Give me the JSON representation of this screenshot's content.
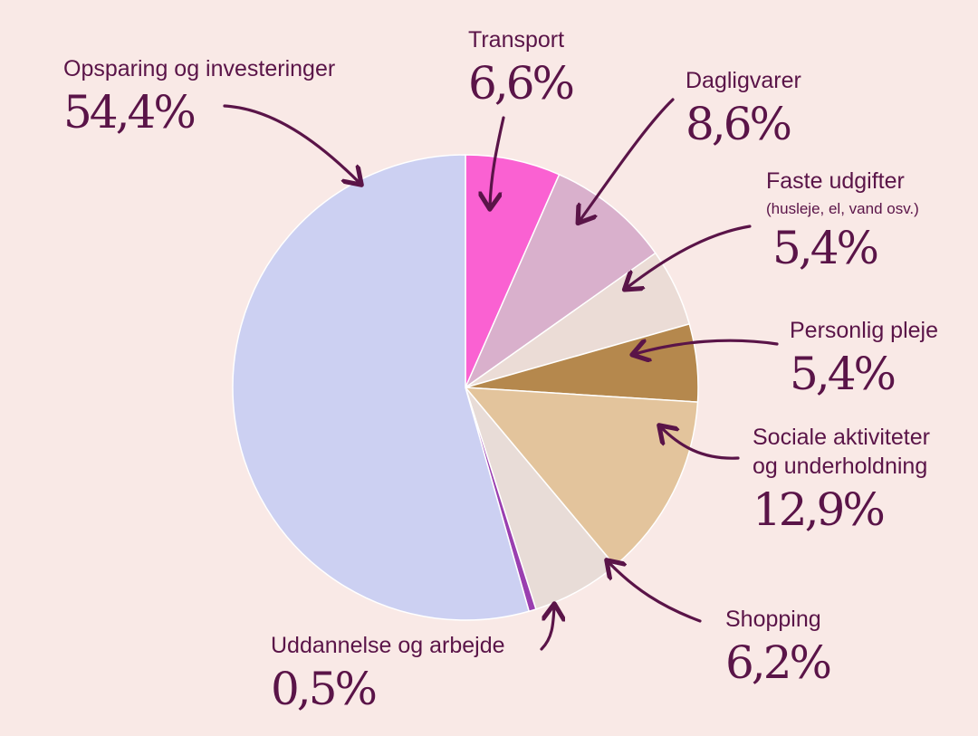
{
  "chart_data": {
    "type": "pie",
    "start_angle_deg": 0,
    "direction": "clockwise",
    "slices": [
      {
        "label": "Transport",
        "value": 6.6,
        "display": "6,6%",
        "color": "#fa61d2"
      },
      {
        "label": "Dagligvarer",
        "value": 8.6,
        "display": "8,6%",
        "color": "#d9b0cc"
      },
      {
        "label": "Faste udgifter",
        "sublabel": "(husleje, el, vand osv.)",
        "value": 5.4,
        "display": "5,4%",
        "color": "#ebdcd6"
      },
      {
        "label": "Personlig pleje",
        "value": 5.4,
        "display": "5,4%",
        "color": "#b5884d"
      },
      {
        "label": "Sociale aktiviteter og underholdning",
        "value": 12.9,
        "display": "12,9%",
        "color": "#e3c49c"
      },
      {
        "label": "Shopping",
        "value": 6.2,
        "display": "6,2%",
        "color": "#e8dcd7"
      },
      {
        "label": "Uddannelse og arbejde",
        "value": 0.5,
        "display": "0,5%",
        "color": "#9a3fb0"
      },
      {
        "label": "Opsparing og investeringer",
        "value": 54.4,
        "display": "54,4%",
        "color": "#ccd0f2"
      }
    ],
    "legend": "none"
  }
}
